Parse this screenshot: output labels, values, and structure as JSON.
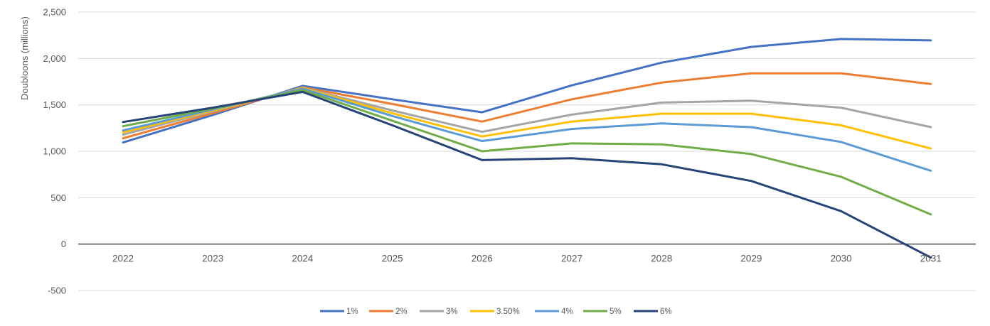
{
  "chart_data": {
    "type": "line",
    "ylabel": "Doubloons (millions)",
    "xlabel": "",
    "title": "",
    "ylim": [
      -500,
      2500
    ],
    "yticks": [
      2500,
      2000,
      1500,
      1000,
      500,
      0,
      -500
    ],
    "ytick_labels": [
      "2,500",
      "2,000",
      "1,500",
      "1,000",
      "500",
      "0",
      "-500"
    ],
    "categories": [
      "2022",
      "2023",
      "2024",
      "2025",
      "2026",
      "2027",
      "2028",
      "2029",
      "2030",
      "2031"
    ],
    "grid": "horizontal",
    "legend_position": "bottom",
    "series": [
      {
        "name": "1%",
        "color": "#4472C4",
        "values": [
          1095,
          1390,
          1705,
          1560,
          1420,
          1710,
          1955,
          2125,
          2210,
          2195
        ]
      },
      {
        "name": "2%",
        "color": "#ED7D31",
        "values": [
          1140,
          1410,
          1690,
          1510,
          1320,
          1560,
          1740,
          1840,
          1840,
          1725
        ]
      },
      {
        "name": "3%",
        "color": "#A5A5A5",
        "values": [
          1180,
          1430,
          1685,
          1440,
          1210,
          1395,
          1525,
          1545,
          1470,
          1260
        ]
      },
      {
        "name": "3.50%",
        "color": "#FFC000",
        "values": [
          1205,
          1440,
          1680,
          1410,
          1160,
          1320,
          1405,
          1405,
          1280,
          1030
        ]
      },
      {
        "name": "4%",
        "color": "#5B9BD5",
        "values": [
          1225,
          1450,
          1675,
          1380,
          1110,
          1240,
          1300,
          1260,
          1100,
          790
        ]
      },
      {
        "name": "5%",
        "color": "#70AD47",
        "values": [
          1270,
          1460,
          1660,
          1330,
          1000,
          1085,
          1075,
          970,
          725,
          320
        ]
      },
      {
        "name": "6%",
        "color": "#264478",
        "values": [
          1315,
          1470,
          1640,
          1280,
          905,
          925,
          860,
          680,
          355,
          -145
        ]
      }
    ]
  }
}
